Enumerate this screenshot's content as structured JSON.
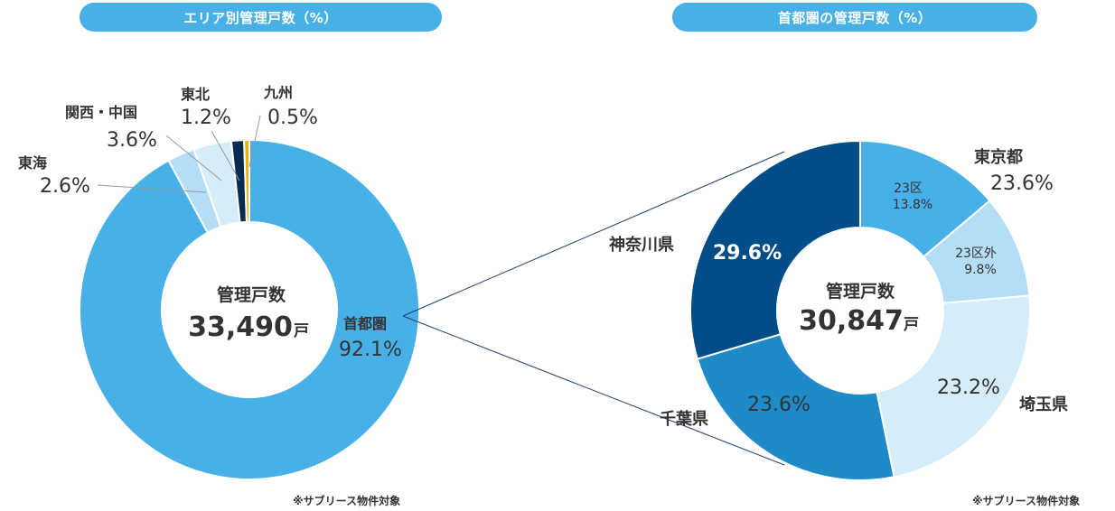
{
  "chart_data": [
    {
      "type": "pie",
      "title": "エリア別管理戸数（%）",
      "center_title": "管理戸数",
      "center_value": "33,490",
      "center_unit": "戸",
      "note": "※サブリース物件対象",
      "slices": [
        {
          "name": "首都圏",
          "value": 92.1,
          "label": "92.1%",
          "color": "#47b0e6"
        },
        {
          "name": "東海",
          "value": 2.6,
          "label": "2.6%",
          "color": "#b3def5"
        },
        {
          "name": "関西・中国",
          "value": 3.6,
          "label": "3.6%",
          "color": "#d5ecf9"
        },
        {
          "name": "東北",
          "value": 1.2,
          "label": "1.2%",
          "color": "#0b2a4f"
        },
        {
          "name": "九州",
          "value": 0.5,
          "label": "0.5%",
          "color": "#f2b300"
        }
      ]
    },
    {
      "type": "pie",
      "title": "首都圏の管理戸数（%）",
      "center_title": "管理戸数",
      "center_value": "30,847",
      "center_unit": "戸",
      "note": "※サブリース物件対象",
      "group_label": {
        "name": "東京都",
        "value": "23.6%"
      },
      "slices": [
        {
          "name": "23区",
          "value": 13.8,
          "label": "13.8%",
          "color": "#47b0e6"
        },
        {
          "name": "23区外",
          "value": 9.8,
          "label": "9.8%",
          "color": "#b3def5"
        },
        {
          "name": "埼玉県",
          "value": 23.2,
          "label": "23.2%",
          "color": "#d5ecf9"
        },
        {
          "name": "千葉県",
          "value": 23.6,
          "label": "23.6%",
          "color": "#1e8bc8"
        },
        {
          "name": "神奈川県",
          "value": 29.6,
          "label": "29.6%",
          "color": "#004d88"
        }
      ]
    }
  ]
}
